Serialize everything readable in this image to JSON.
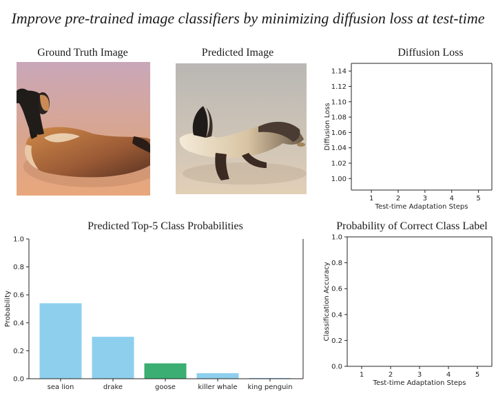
{
  "page": {
    "title": "Improve pre-trained image classifiers by minimizing diffusion loss at test-time"
  },
  "images": {
    "ground_truth": {
      "title": "Ground Truth Image",
      "subject": "wooden goose decoy"
    },
    "predicted": {
      "title": "Predicted Image",
      "subject": "generated sea-lion-like animal"
    }
  },
  "chart_data": [
    {
      "id": "diffusion-loss",
      "type": "line",
      "title": "Diffusion Loss",
      "xlabel": "Test-time Adaptation Steps",
      "ylabel": "Diffusion Loss",
      "xlim": [
        0.25,
        5.5
      ],
      "ylim": [
        0.985,
        1.15
      ],
      "xticks": [
        1,
        2,
        3,
        4,
        5
      ],
      "yticks": [
        1.0,
        1.02,
        1.04,
        1.06,
        1.08,
        1.1,
        1.12,
        1.14
      ],
      "ytick_labels": [
        "1.00",
        "1.02",
        "1.04",
        "1.06",
        "1.08",
        "1.10",
        "1.12",
        "1.14"
      ],
      "series": [],
      "grid": false
    },
    {
      "id": "top5-probabilities",
      "type": "bar",
      "title": "Predicted Top-5 Class Probabilities",
      "xlabel": "",
      "ylabel": "Probability",
      "ylim": [
        0,
        1.0
      ],
      "yticks": [
        0,
        0.2,
        0.4,
        0.6,
        0.8,
        1.0
      ],
      "ytick_labels": [
        "0.0",
        "0.2",
        "0.4",
        "0.6",
        "0.8",
        "1.0"
      ],
      "categories": [
        "sea lion",
        "drake",
        "goose",
        "killer whale",
        "king penguin"
      ],
      "values": [
        0.54,
        0.3,
        0.11,
        0.04,
        0.005
      ],
      "colors": [
        "#8ecfee",
        "#8ecfee",
        "#3aae73",
        "#8ecfee",
        "#8ecfee"
      ],
      "correct_class": "goose",
      "grid": false
    },
    {
      "id": "correct-class-probability",
      "type": "line",
      "title": "Probability of Correct Class Label",
      "xlabel": "Test-time Adaptation Steps",
      "ylabel": "Classification Accuracy",
      "xlim": [
        0.5,
        5.5
      ],
      "ylim": [
        0,
        1.0
      ],
      "xticks": [
        1,
        2,
        3,
        4,
        5
      ],
      "yticks": [
        0,
        0.2,
        0.4,
        0.6,
        0.8,
        1.0
      ],
      "ytick_labels": [
        "0.0",
        "0.2",
        "0.4",
        "0.6",
        "0.8",
        "1.0"
      ],
      "series": [],
      "grid": false
    }
  ],
  "colors": {
    "bar": "#8ecfee",
    "correct_bar": "#3aae73",
    "axis": "#222222"
  }
}
